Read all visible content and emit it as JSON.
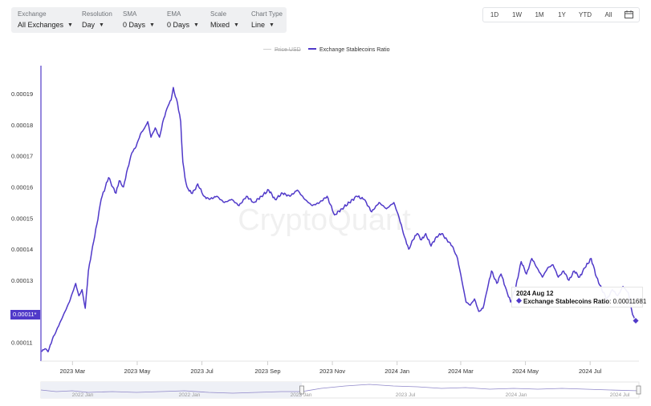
{
  "toolbar": {
    "controls": [
      {
        "label": "Exchange",
        "value": "All Exchanges"
      },
      {
        "label": "Resolution",
        "value": "Day"
      },
      {
        "label": "SMA",
        "value": "0 Days"
      },
      {
        "label": "EMA",
        "value": "0 Days"
      },
      {
        "label": "Scale",
        "value": "Mixed"
      },
      {
        "label": "Chart Type",
        "value": "Line"
      }
    ]
  },
  "ranges": [
    "1D",
    "1W",
    "1M",
    "1Y",
    "YTD",
    "All"
  ],
  "icons": {
    "calendar": "calendar-icon",
    "dropdown": "chevron-down-icon",
    "marker": "diamond-icon"
  },
  "colors": {
    "series": "#5039c9",
    "price": "#cfcfcf",
    "accent": "#5039c9"
  },
  "watermark": "CryptoQuant",
  "legend": {
    "price": "Price USD",
    "ratio": "Exchange Stablecoins Ratio"
  },
  "tooltip": {
    "date": "2024 Aug 12",
    "series": "Exchange Stablecoins Ratio",
    "value": "0.00011681"
  },
  "current_value_tag": "0.00011*",
  "navigator_labels": [
    "2022 Jan",
    "2022 Jan",
    "2023 Jan",
    "2023 Jul",
    "2024 Jan",
    "2024 Jul"
  ],
  "chart_data": {
    "type": "line",
    "title": "",
    "xlabel": "",
    "ylabel": "",
    "ylim": [
      0.000104,
      0.000199
    ],
    "xlim": [
      "2023-01-31",
      "2024-08-13"
    ],
    "grid": false,
    "legend_position": "top-center",
    "y_ticks": [
      "0.00011",
      "0.00012",
      "0.00013",
      "0.00014",
      "0.00015",
      "0.00016",
      "0.00017",
      "0.00018",
      "0.00019"
    ],
    "x_ticks": [
      {
        "label": "2023 Mar",
        "date": "2023-03-01"
      },
      {
        "label": "2023 May",
        "date": "2023-05-01"
      },
      {
        "label": "2023 Jul",
        "date": "2023-07-01"
      },
      {
        "label": "2023 Sep",
        "date": "2023-09-01"
      },
      {
        "label": "2023 Nov",
        "date": "2023-11-01"
      },
      {
        "label": "2024 Jan",
        "date": "2024-01-01"
      },
      {
        "label": "2024 Mar",
        "date": "2024-03-01"
      },
      {
        "label": "2024 May",
        "date": "2024-05-01"
      },
      {
        "label": "2024 Jul",
        "date": "2024-07-01"
      }
    ],
    "series": [
      {
        "name": "Exchange Stablecoins Ratio",
        "points": [
          [
            "2023-01-31",
            0.000107
          ],
          [
            "2023-02-03",
            0.000108
          ],
          [
            "2023-02-06",
            0.000107
          ],
          [
            "2023-02-10",
            0.000111
          ],
          [
            "2023-02-14",
            0.000114
          ],
          [
            "2023-02-18",
            0.000117
          ],
          [
            "2023-02-22",
            0.00012
          ],
          [
            "2023-02-26",
            0.000123
          ],
          [
            "2023-03-01",
            0.000126
          ],
          [
            "2023-03-04",
            0.000129
          ],
          [
            "2023-03-07",
            0.000125
          ],
          [
            "2023-03-10",
            0.000127
          ],
          [
            "2023-03-13",
            0.000121
          ],
          [
            "2023-03-16",
            0.000133
          ],
          [
            "2023-03-20",
            0.000141
          ],
          [
            "2023-03-24",
            0.000148
          ],
          [
            "2023-03-28",
            0.000156
          ],
          [
            "2023-04-01",
            0.00016
          ],
          [
            "2023-04-04",
            0.000163
          ],
          [
            "2023-04-08",
            0.00016
          ],
          [
            "2023-04-11",
            0.000158
          ],
          [
            "2023-04-14",
            0.000162
          ],
          [
            "2023-04-18",
            0.00016
          ],
          [
            "2023-04-22",
            0.000166
          ],
          [
            "2023-04-26",
            0.000171
          ],
          [
            "2023-04-30",
            0.000173
          ],
          [
            "2023-05-04",
            0.000177
          ],
          [
            "2023-05-08",
            0.000179
          ],
          [
            "2023-05-11",
            0.000181
          ],
          [
            "2023-05-14",
            0.000176
          ],
          [
            "2023-05-18",
            0.000179
          ],
          [
            "2023-05-22",
            0.000176
          ],
          [
            "2023-05-26",
            0.000182
          ],
          [
            "2023-05-30",
            0.000186
          ],
          [
            "2023-06-02",
            0.000188
          ],
          [
            "2023-06-04",
            0.000192
          ],
          [
            "2023-06-06",
            0.000189
          ],
          [
            "2023-06-08",
            0.000187
          ],
          [
            "2023-06-11",
            0.000181
          ],
          [
            "2023-06-13",
            0.000168
          ],
          [
            "2023-06-15",
            0.000163
          ],
          [
            "2023-06-17",
            0.00016
          ],
          [
            "2023-06-21",
            0.000158
          ],
          [
            "2023-06-24",
            0.000159
          ],
          [
            "2023-06-27",
            0.000161
          ],
          [
            "2023-07-03",
            0.000157
          ],
          [
            "2023-07-08",
            0.000156
          ],
          [
            "2023-07-15",
            0.000157
          ],
          [
            "2023-07-22",
            0.000155
          ],
          [
            "2023-07-29",
            0.000156
          ],
          [
            "2023-08-05",
            0.000154
          ],
          [
            "2023-08-12",
            0.000157
          ],
          [
            "2023-08-19",
            0.000155
          ],
          [
            "2023-08-26",
            0.000157
          ],
          [
            "2023-09-02",
            0.000159
          ],
          [
            "2023-09-08",
            0.000156
          ],
          [
            "2023-09-15",
            0.000158
          ],
          [
            "2023-09-22",
            0.000157
          ],
          [
            "2023-09-29",
            0.000159
          ],
          [
            "2023-10-06",
            0.000156
          ],
          [
            "2023-10-13",
            0.000154
          ],
          [
            "2023-10-20",
            0.000155
          ],
          [
            "2023-10-27",
            0.000157
          ],
          [
            "2023-11-03",
            0.000151
          ],
          [
            "2023-11-10",
            0.000153
          ],
          [
            "2023-11-17",
            0.000155
          ],
          [
            "2023-11-24",
            0.000157
          ],
          [
            "2023-12-01",
            0.000156
          ],
          [
            "2023-12-08",
            0.000152
          ],
          [
            "2023-12-15",
            0.000155
          ],
          [
            "2023-12-22",
            0.000153
          ],
          [
            "2023-12-29",
            0.000155
          ],
          [
            "2024-01-03",
            0.00015
          ],
          [
            "2024-01-08",
            0.000144
          ],
          [
            "2024-01-12",
            0.00014
          ],
          [
            "2024-01-16",
            0.000143
          ],
          [
            "2024-01-20",
            0.000145
          ],
          [
            "2024-01-24",
            0.000143
          ],
          [
            "2024-01-28",
            0.000145
          ],
          [
            "2024-02-02",
            0.000141
          ],
          [
            "2024-02-07",
            0.000144
          ],
          [
            "2024-02-12",
            0.000145
          ],
          [
            "2024-02-17",
            0.000143
          ],
          [
            "2024-02-22",
            0.000141
          ],
          [
            "2024-02-27",
            0.000137
          ],
          [
            "2024-03-02",
            0.00013
          ],
          [
            "2024-03-06",
            0.000123
          ],
          [
            "2024-03-10",
            0.000122
          ],
          [
            "2024-03-14",
            0.000124
          ],
          [
            "2024-03-18",
            0.00012
          ],
          [
            "2024-03-22",
            0.000121
          ],
          [
            "2024-03-26",
            0.000127
          ],
          [
            "2024-03-30",
            0.000133
          ],
          [
            "2024-04-04",
            0.000129
          ],
          [
            "2024-04-08",
            0.000132
          ],
          [
            "2024-04-13",
            0.000127
          ],
          [
            "2024-04-17",
            0.000123
          ],
          [
            "2024-04-22",
            0.000128
          ],
          [
            "2024-04-27",
            0.000136
          ],
          [
            "2024-05-02",
            0.000132
          ],
          [
            "2024-05-07",
            0.000137
          ],
          [
            "2024-05-12",
            0.000134
          ],
          [
            "2024-05-17",
            0.000131
          ],
          [
            "2024-05-22",
            0.000134
          ],
          [
            "2024-05-27",
            0.000135
          ],
          [
            "2024-06-01",
            0.000131
          ],
          [
            "2024-06-06",
            0.000133
          ],
          [
            "2024-06-11",
            0.00013
          ],
          [
            "2024-06-16",
            0.000133
          ],
          [
            "2024-06-21",
            0.000131
          ],
          [
            "2024-06-26",
            0.000134
          ],
          [
            "2024-07-02",
            0.000137
          ],
          [
            "2024-07-07",
            0.000131
          ],
          [
            "2024-07-12",
            0.000127
          ],
          [
            "2024-07-17",
            0.000124
          ],
          [
            "2024-07-22",
            0.000127
          ],
          [
            "2024-07-27",
            0.000125
          ],
          [
            "2024-08-01",
            0.000128
          ],
          [
            "2024-08-06",
            0.000126
          ],
          [
            "2024-08-10",
            0.000119
          ],
          [
            "2024-08-13",
            0.000117
          ]
        ]
      }
    ]
  }
}
